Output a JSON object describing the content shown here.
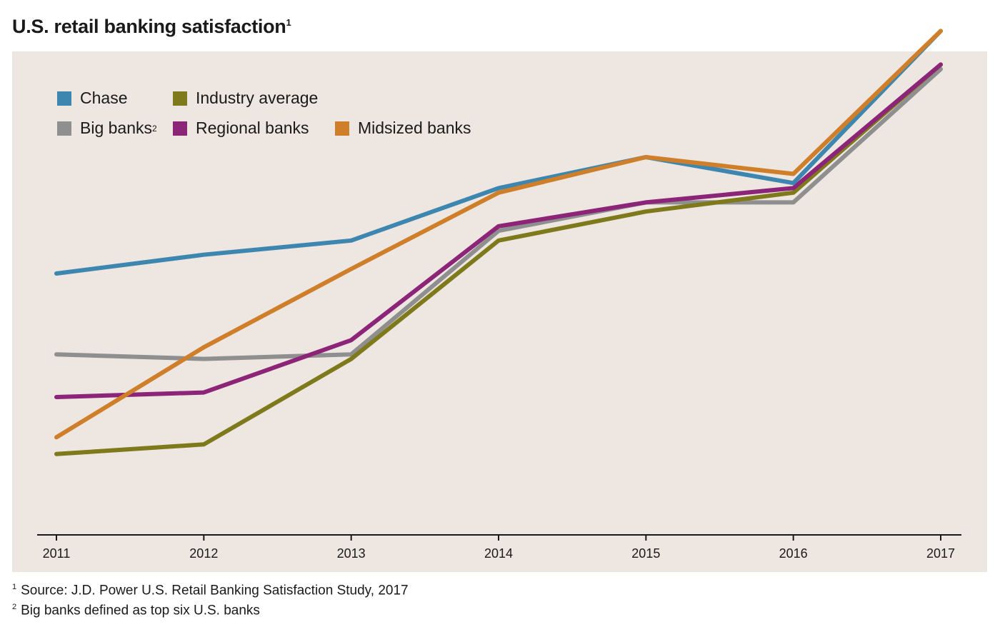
{
  "title": "U.S. retail banking satisfaction",
  "title_sup": "1",
  "footnotes": [
    {
      "mark": "1",
      "text": "Source: J.D. Power U.S. Retail Banking Satisfaction Study, 2017"
    },
    {
      "mark": "2",
      "text": "Big banks defined as top six U.S. banks"
    }
  ],
  "legend": [
    {
      "label": "Chase",
      "sup": "",
      "color": "#3d86b0"
    },
    {
      "label": "Industry average",
      "sup": "",
      "color": "#7e7a1c"
    },
    {
      "label": "Big banks",
      "sup": "2",
      "color": "#8f8f8f"
    },
    {
      "label": "Regional banks",
      "sup": "",
      "color": "#8c2478"
    },
    {
      "label": "Midsized banks",
      "sup": "",
      "color": "#cf7f2a"
    }
  ],
  "chart_data": {
    "type": "line",
    "title": "U.S. retail banking satisfaction",
    "x": [
      "2011",
      "2012",
      "2013",
      "2014",
      "2015",
      "2016",
      "2017"
    ],
    "ylim": [
      0,
      100
    ],
    "grid": false,
    "legend_position": "top-left",
    "series": [
      {
        "name": "Big banks",
        "color": "#8f8f8f",
        "values": [
          35.5,
          34.6,
          35.5,
          59.8,
          65.4,
          65.4,
          91.6
        ]
      },
      {
        "name": "Industry average",
        "color": "#7e7a1c",
        "values": [
          15.9,
          17.8,
          34.6,
          57.9,
          63.6,
          67.3,
          92.5
        ]
      },
      {
        "name": "Regional banks",
        "color": "#8c2478",
        "values": [
          27.1,
          28.0,
          38.3,
          60.7,
          65.4,
          68.2,
          92.5
        ]
      },
      {
        "name": "Chase",
        "color": "#3d86b0",
        "values": [
          51.4,
          55.1,
          57.9,
          68.2,
          74.3,
          69.2,
          99.1
        ]
      },
      {
        "name": "Midsized banks",
        "color": "#cf7f2a",
        "values": [
          19.2,
          36.9,
          52.3,
          67.3,
          74.3,
          71.0,
          99.1
        ]
      }
    ]
  }
}
